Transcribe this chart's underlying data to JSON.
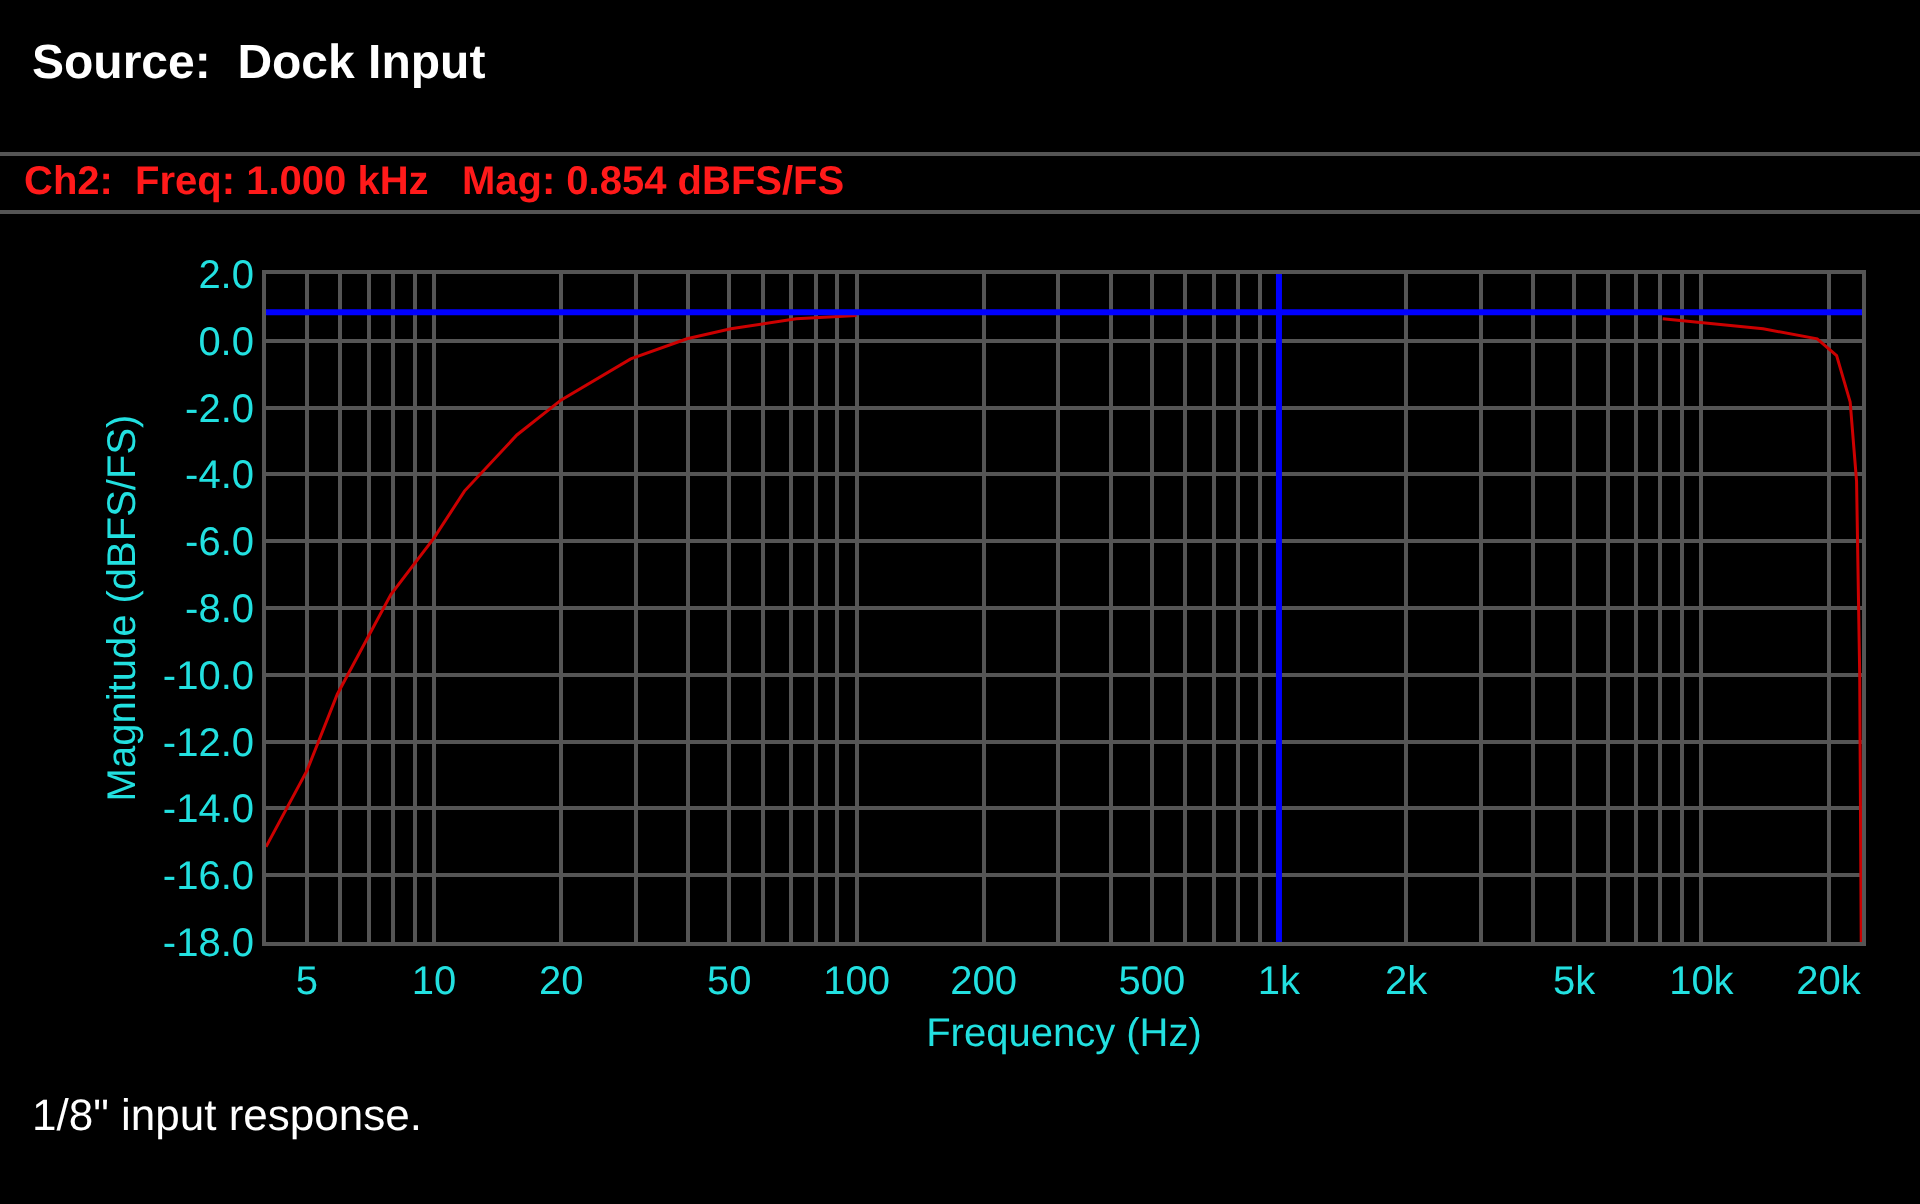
{
  "chart_data": {
    "type": "line",
    "title": "Source:  Dock Input",
    "subtitle": "Ch2:  Freq: 1.000 kHz   Mag: 0.854 dBFS/FS",
    "xlabel": "Frequency (Hz)",
    "ylabel": "Magnitude (dBFS/FS)",
    "annotations": [
      "1/8\" input response."
    ],
    "x": [
      4,
      5,
      5.9,
      7.9,
      10,
      11.8,
      15.7,
      20,
      29.2,
      39.7,
      50.4,
      72,
      100,
      200,
      500,
      1000,
      2000,
      3940,
      8100,
      14000,
      18800,
      20900,
      22500,
      23300,
      23700,
      23900
    ],
    "series": [
      {
        "color": "#cc0000",
        "values": [
          -15.15,
          -12.87,
          -10.58,
          -7.6,
          -5.9,
          -4.5,
          -2.82,
          -1.77,
          -0.54,
          0.06,
          0.36,
          0.66,
          0.76,
          null,
          null,
          null,
          null,
          null,
          0.66,
          0.36,
          0.06,
          -0.44,
          -1.83,
          -4.2,
          -10,
          -18
        ]
      }
    ],
    "log": "x",
    "xlim": [
      4,
      24000
    ],
    "xticks": [
      {
        "value": 4,
        "label": null
      },
      5,
      {
        "value": 6,
        "label": null
      },
      {
        "value": 7,
        "label": null
      },
      {
        "value": 8,
        "label": null
      },
      {
        "value": 9,
        "label": null
      },
      10,
      20,
      {
        "value": 30,
        "label": null
      },
      {
        "value": 40,
        "label": null
      },
      50,
      {
        "value": 60,
        "label": null
      },
      {
        "value": 70,
        "label": null
      },
      {
        "value": 80,
        "label": null
      },
      {
        "value": 90,
        "label": null
      },
      100,
      200,
      {
        "value": 300,
        "label": null
      },
      {
        "value": 400,
        "label": null
      },
      500,
      {
        "value": 600,
        "label": null
      },
      {
        "value": 700,
        "label": null
      },
      {
        "value": 800,
        "label": null
      },
      {
        "value": 900,
        "label": null
      },
      {
        "value": 1000,
        "label": "1k"
      },
      {
        "value": 2000,
        "label": "2k"
      },
      {
        "value": 3000,
        "label": null
      },
      {
        "value": 4000,
        "label": null
      },
      {
        "value": 5000,
        "label": "5k"
      },
      {
        "value": 6000,
        "label": null
      },
      {
        "value": 7000,
        "label": null
      },
      {
        "value": 8000,
        "label": null
      },
      {
        "value": 9000,
        "label": null
      },
      {
        "value": 10000,
        "label": "10k"
      },
      {
        "value": 20000,
        "label": "20k"
      }
    ],
    "ylim": [
      -18,
      2
    ],
    "yticks": [
      {
        "value": 2,
        "label": "2.0"
      },
      {
        "value": 0,
        "label": "0.0"
      },
      {
        "value": -2,
        "label": "-2.0"
      },
      {
        "value": -4,
        "label": "-4.0"
      },
      {
        "value": -6,
        "label": "-6.0"
      },
      {
        "value": -8,
        "label": "-8.0"
      },
      {
        "value": -10,
        "label": "-10.0"
      },
      {
        "value": -12,
        "label": "-12.0"
      },
      {
        "value": -14,
        "label": "-14.0"
      },
      {
        "value": -16,
        "label": "-16.0"
      },
      {
        "value": -18,
        "label": "-18.0"
      }
    ],
    "ref_lines": [
      {
        "axis": "x",
        "value": 1000,
        "color": "#0000ff"
      },
      {
        "axis": "y",
        "value": 0.854,
        "color": "#0000ff"
      }
    ],
    "grid": true,
    "marker": "none",
    "line_style": "solid"
  }
}
